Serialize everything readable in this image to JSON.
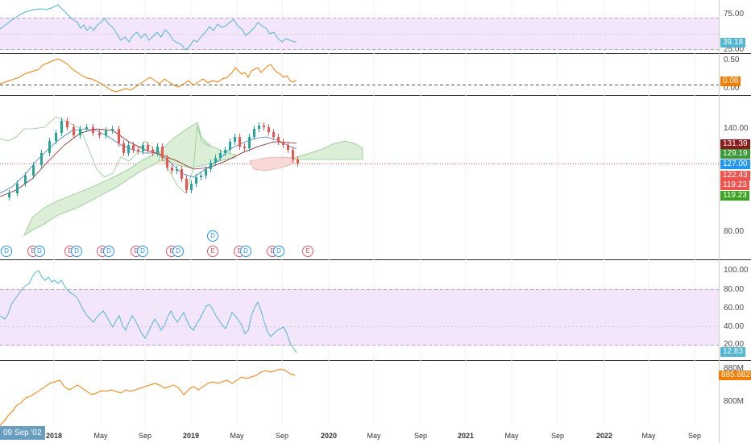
{
  "colors": {
    "rsi": "#4fb6d8",
    "orange": "#f57c00",
    "band_fill": "#f3e6fb",
    "up": "#26a69a",
    "down": "#ef5350",
    "price_line": "#ef5350"
  },
  "panes": {
    "rsi_top": {
      "ticks": [
        "75.00",
        "39.18",
        "25.00"
      ],
      "value_label": "39.18"
    },
    "macd": {
      "ticks": [
        "0.50",
        "0.00"
      ],
      "value_label": "0.08"
    },
    "price": {
      "ticks": [
        "140.00",
        "80.00"
      ],
      "labels": [
        {
          "text": "131.39",
          "color": "#8b1a1a"
        },
        {
          "text": "129.19",
          "color": "#3a9a3a"
        },
        {
          "text": "127.00",
          "color": "#2196f3"
        },
        {
          "text": "122.43",
          "color": "#ef5350"
        },
        {
          "text": "119.23",
          "color": "#ef5350"
        },
        {
          "text": "119.23",
          "color": "#3aa61f"
        }
      ]
    },
    "stoch": {
      "ticks": [
        "100.00",
        "80.00",
        "60.00",
        "40.00",
        "20.00"
      ],
      "value_label": "12.83"
    },
    "obv": {
      "ticks": [
        "880M",
        "800M"
      ],
      "value_label": "885.682M"
    }
  },
  "events": [
    {
      "type": "D"
    },
    {
      "type": "E"
    },
    {
      "type": "E"
    },
    {
      "type": "E"
    },
    {
      "type": "E"
    },
    {
      "type": "E"
    },
    {
      "type": "E"
    },
    {
      "type": "E"
    },
    {
      "type": "D"
    },
    {
      "type": "E"
    },
    {
      "type": "E"
    },
    {
      "type": "E"
    },
    {
      "type": "E"
    },
    {
      "type": "E"
    },
    {
      "type": "E"
    }
  ],
  "time_axis": {
    "cursor_date": "09 Sep '02",
    "labels": [
      "2018",
      "May",
      "Sep",
      "2019",
      "May",
      "Sep",
      "2020",
      "May",
      "Sep",
      "2021",
      "May",
      "Sep",
      "2022",
      "May",
      "Sep"
    ]
  }
}
